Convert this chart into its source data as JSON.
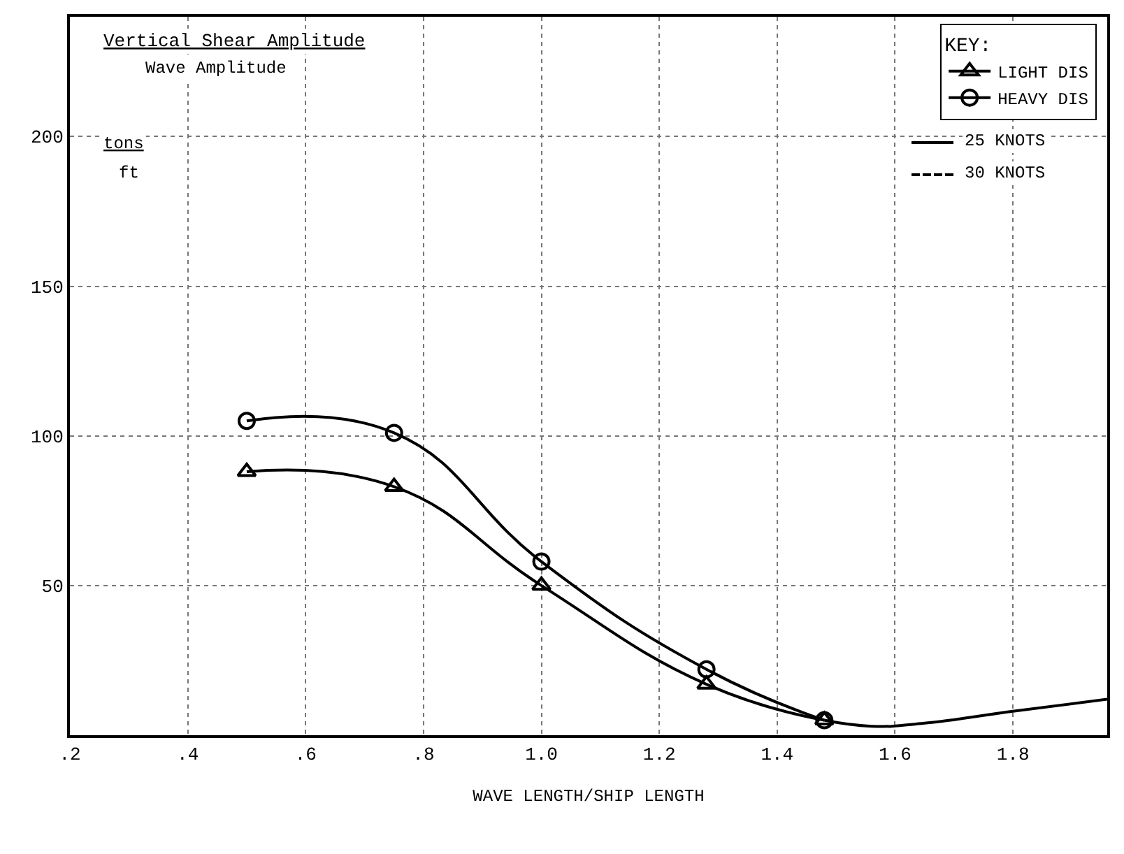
{
  "chart_data": {
    "type": "line",
    "xlabel": "WAVE LENGTH/SHIP LENGTH",
    "legend_title": "KEY:",
    "annotations": [
      "Vertical Shear Amplitude",
      "Wave Amplitude",
      "tons",
      "ft",
      "25 KNOTS",
      "30 KNOTS"
    ],
    "xlim": [
      0.2,
      1.96
    ],
    "xticks": [
      {
        "value": 0.2,
        "label": ".2"
      },
      {
        "value": 0.4,
        "label": ".4"
      },
      {
        "value": 0.6,
        "label": ".6"
      },
      {
        "value": 0.8,
        "label": ".8"
      },
      {
        "value": 1.0,
        "label": "1.0"
      },
      {
        "value": 1.2,
        "label": "1.2"
      },
      {
        "value": 1.4,
        "label": "1.4"
      },
      {
        "value": 1.6,
        "label": "1.6"
      },
      {
        "value": 1.8,
        "label": "1.8"
      }
    ],
    "ylim": [
      0,
      240
    ],
    "yticks": [
      50,
      100,
      150,
      200
    ],
    "grid": true,
    "legend": "top right",
    "series": [
      {
        "name": "LIGHT DIS",
        "color": "#000000",
        "marker": "triangle",
        "line_style": "solid",
        "x": [
          0.5,
          0.75,
          1.0,
          1.28,
          1.48
        ],
        "values": [
          88,
          83,
          50,
          17,
          5
        ]
      },
      {
        "name": "HEAVY DIS",
        "color": "#000000",
        "marker": "circle",
        "line_style": "solid",
        "x": [
          0.5,
          0.75,
          1.0,
          1.28,
          1.48
        ],
        "values": [
          105,
          101,
          58,
          22,
          5
        ]
      },
      {
        "color": "#000000",
        "line_style": "solid",
        "x": [
          1.48,
          1.56,
          1.65,
          1.8,
          1.96
        ],
        "values": [
          5,
          3,
          4,
          8,
          12
        ]
      }
    ]
  }
}
